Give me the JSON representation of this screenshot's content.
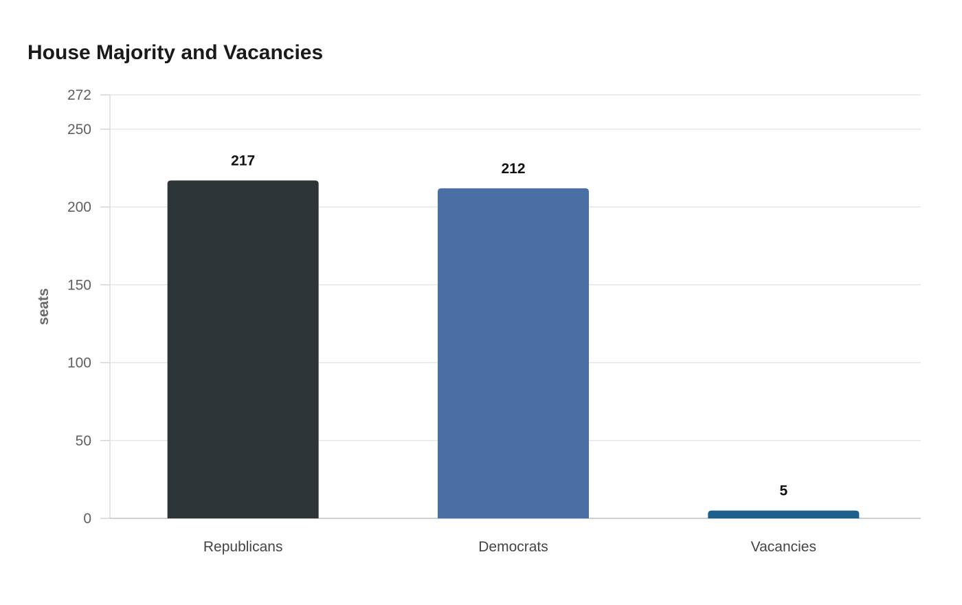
{
  "chart_data": {
    "type": "bar",
    "title": "House Majority and Vacancies",
    "xlabel": "",
    "ylabel": "seats",
    "categories": [
      "Republicans",
      "Democrats",
      "Vacancies"
    ],
    "values": [
      217,
      212,
      5
    ],
    "data_labels": [
      "217",
      "212",
      "5"
    ],
    "colors": [
      "#2e3538",
      "#4a6fa5",
      "#1f5f8b"
    ],
    "ylim": [
      0,
      272
    ],
    "yticks": [
      0,
      50,
      100,
      150,
      200,
      250,
      272
    ],
    "ytick_labels": [
      "0",
      "50",
      "100",
      "150",
      "200",
      "250",
      "272"
    ],
    "grid": true,
    "legend": "none"
  }
}
